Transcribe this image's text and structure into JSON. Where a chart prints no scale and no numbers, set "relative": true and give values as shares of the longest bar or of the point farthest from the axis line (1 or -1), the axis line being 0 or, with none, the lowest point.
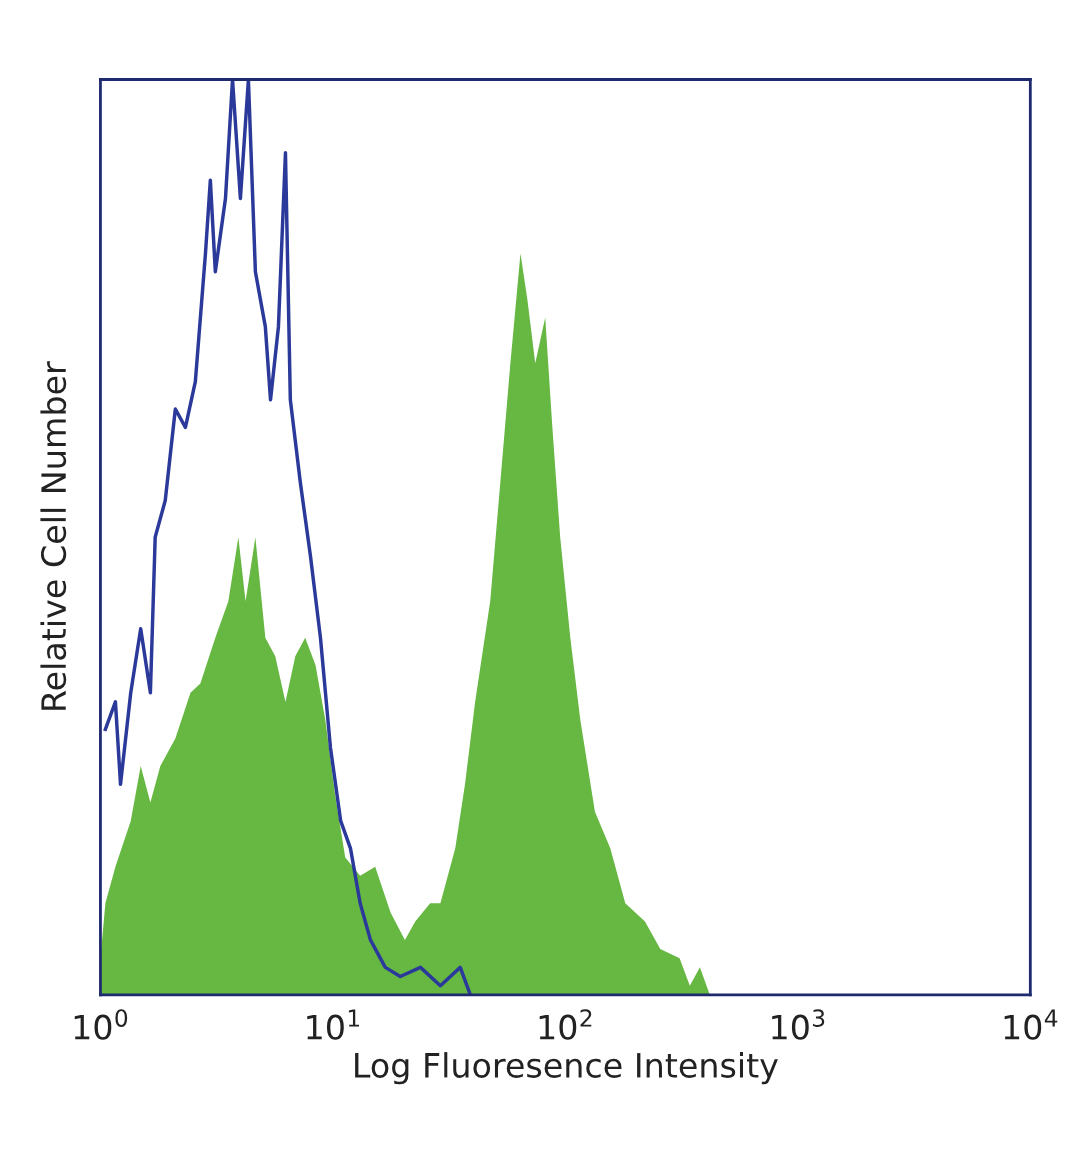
{
  "chart_data": {
    "type": "line",
    "xlabel": "Log Fluoresence Intensity",
    "ylabel": "Relative Cell Number",
    "relative": true,
    "log": "x",
    "grid": false,
    "legend": false,
    "marker": "none",
    "line_style": "solid",
    "xlim": [
      1,
      10000
    ],
    "xticks": [
      {
        "value": 1,
        "label": "10$^{0}$"
      },
      {
        "value": 10,
        "label": "10$^{1}$"
      },
      {
        "value": 100,
        "label": "10$^{2}$"
      },
      {
        "value": 1000,
        "label": "10$^{3}$"
      },
      {
        "value": 10000,
        "label": "10$^{4}$"
      }
    ],
    "series": [
      {
        "type": "area",
        "color": "#66b843",
        "x": [
          1.0,
          1.05,
          1.16,
          1.35,
          1.49,
          1.64,
          1.81,
          2.1,
          2.44,
          2.69,
          3.12,
          3.55,
          3.92,
          4.21,
          4.64,
          5.12,
          5.65,
          6.25,
          6.89,
          7.6,
          8.42,
          9.28,
          10.2,
          11.3,
          13.1,
          15.2,
          17.7,
          20.4,
          22.6,
          26.2,
          29.0,
          33.6,
          37.0,
          40.9,
          47.5,
          52.5,
          58.0,
          64.1,
          68.6,
          74.2,
          81.9,
          87.9,
          95.0,
          105,
          116,
          134,
          156,
          181,
          220,
          256,
          310,
          343,
          379,
          418
        ],
        "values": [
          0.04,
          0.1,
          0.14,
          0.19,
          0.25,
          0.21,
          0.25,
          0.28,
          0.33,
          0.34,
          0.39,
          0.43,
          0.5,
          0.43,
          0.5,
          0.39,
          0.37,
          0.32,
          0.37,
          0.39,
          0.36,
          0.3,
          0.22,
          0.15,
          0.13,
          0.14,
          0.09,
          0.06,
          0.08,
          0.1,
          0.1,
          0.16,
          0.23,
          0.32,
          0.43,
          0.56,
          0.69,
          0.81,
          0.76,
          0.69,
          0.74,
          0.62,
          0.5,
          0.39,
          0.3,
          0.2,
          0.16,
          0.1,
          0.08,
          0.05,
          0.04,
          0.01,
          0.03,
          0
        ]
      },
      {
        "color": "#2b3a9a",
        "x": [
          1.05,
          1.16,
          1.22,
          1.35,
          1.49,
          1.64,
          1.72,
          1.9,
          2.1,
          2.32,
          2.56,
          2.83,
          2.97,
          3.12,
          3.45,
          3.7,
          4.0,
          4.33,
          4.64,
          5.12,
          5.39,
          5.83,
          6.25,
          6.56,
          7.24,
          8.0,
          8.84,
          9.76,
          10.8,
          11.9,
          13.1,
          14.5,
          16.8,
          19.5,
          23.8,
          29.0,
          35.3,
          39.0
        ],
        "values": [
          0.29,
          0.32,
          0.23,
          0.33,
          0.4,
          0.33,
          0.5,
          0.54,
          0.64,
          0.62,
          0.67,
          0.81,
          0.89,
          0.79,
          0.87,
          1.0,
          0.87,
          1.0,
          0.79,
          0.73,
          0.65,
          0.73,
          0.92,
          0.65,
          0.56,
          0.48,
          0.39,
          0.27,
          0.19,
          0.16,
          0.1,
          0.06,
          0.03,
          0.02,
          0.03,
          0.01,
          0.03,
          0
        ]
      }
    ]
  }
}
